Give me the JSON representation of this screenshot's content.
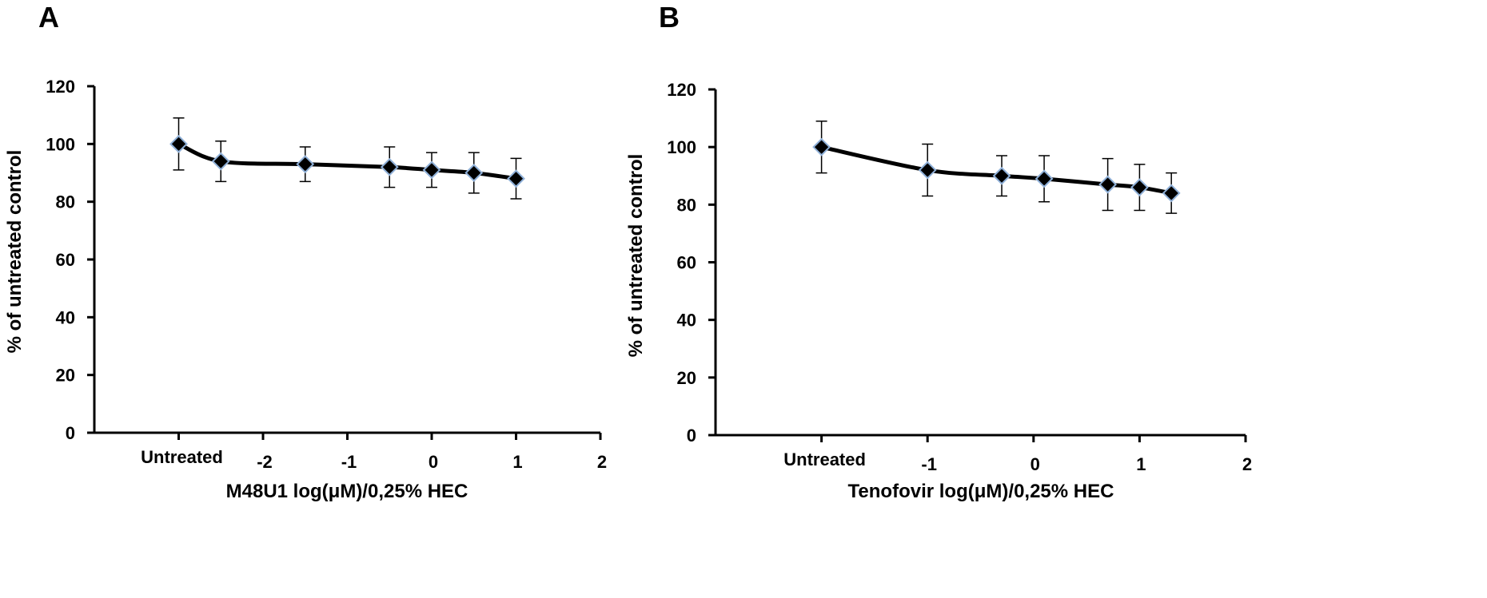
{
  "chart_data": [
    {
      "type": "line",
      "panel_label": "A",
      "xlabel": "M48U1 log(μM)/0,25% HEC",
      "ylabel": "% of untreated control",
      "ylim": [
        0,
        120
      ],
      "yticks": [
        0,
        20,
        40,
        60,
        80,
        100,
        120
      ],
      "xlim": [
        -4,
        2
      ],
      "xticks": [
        {
          "value": -3,
          "label": "Untreated"
        },
        {
          "value": -2,
          "label": "-2"
        },
        {
          "value": -1,
          "label": "-1"
        },
        {
          "value": 0,
          "label": "0"
        },
        {
          "value": 1,
          "label": "1"
        },
        {
          "value": 2,
          "label": "2"
        }
      ],
      "grid": false,
      "series": [
        {
          "points": [
            {
              "x": -3,
              "y": 100,
              "err": 9
            },
            {
              "x": -2.5,
              "y": 94,
              "err": 7
            },
            {
              "x": -1.5,
              "y": 93,
              "err": 6
            },
            {
              "x": -0.5,
              "y": 92,
              "err": 7
            },
            {
              "x": 0,
              "y": 91,
              "err": 6
            },
            {
              "x": 0.5,
              "y": 90,
              "err": 7
            },
            {
              "x": 1,
              "y": 88,
              "err": 7
            }
          ]
        }
      ]
    },
    {
      "type": "line",
      "panel_label": "B",
      "xlabel": "Tenofovir log(μM)/0,25% HEC",
      "ylabel": "% of untreated control",
      "ylim": [
        0,
        120
      ],
      "yticks": [
        0,
        20,
        40,
        60,
        80,
        100,
        120
      ],
      "xlim": [
        -3,
        2
      ],
      "xticks": [
        {
          "value": -2,
          "label": "Untreated"
        },
        {
          "value": -1,
          "label": "-1"
        },
        {
          "value": 0,
          "label": "0"
        },
        {
          "value": 1,
          "label": "1"
        },
        {
          "value": 2,
          "label": "2"
        }
      ],
      "grid": false,
      "series": [
        {
          "points": [
            {
              "x": -2,
              "y": 100,
              "err": 9
            },
            {
              "x": -1,
              "y": 92,
              "err": 9
            },
            {
              "x": -0.3,
              "y": 90,
              "err": 7
            },
            {
              "x": 0.1,
              "y": 89,
              "err": 8
            },
            {
              "x": 0.7,
              "y": 87,
              "err": 9
            },
            {
              "x": 1,
              "y": 86,
              "err": 8
            },
            {
              "x": 1.3,
              "y": 84,
              "err": 7
            }
          ]
        }
      ]
    }
  ]
}
